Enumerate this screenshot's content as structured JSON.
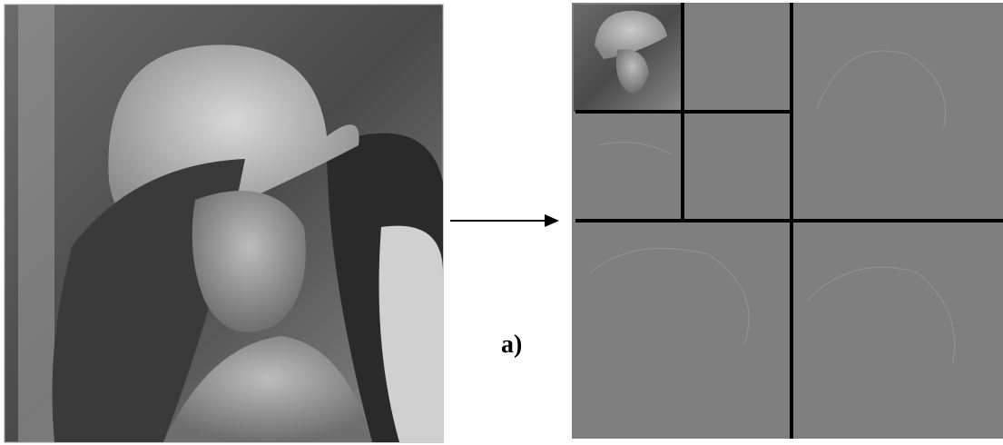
{
  "figure": {
    "label": "a)"
  }
}
